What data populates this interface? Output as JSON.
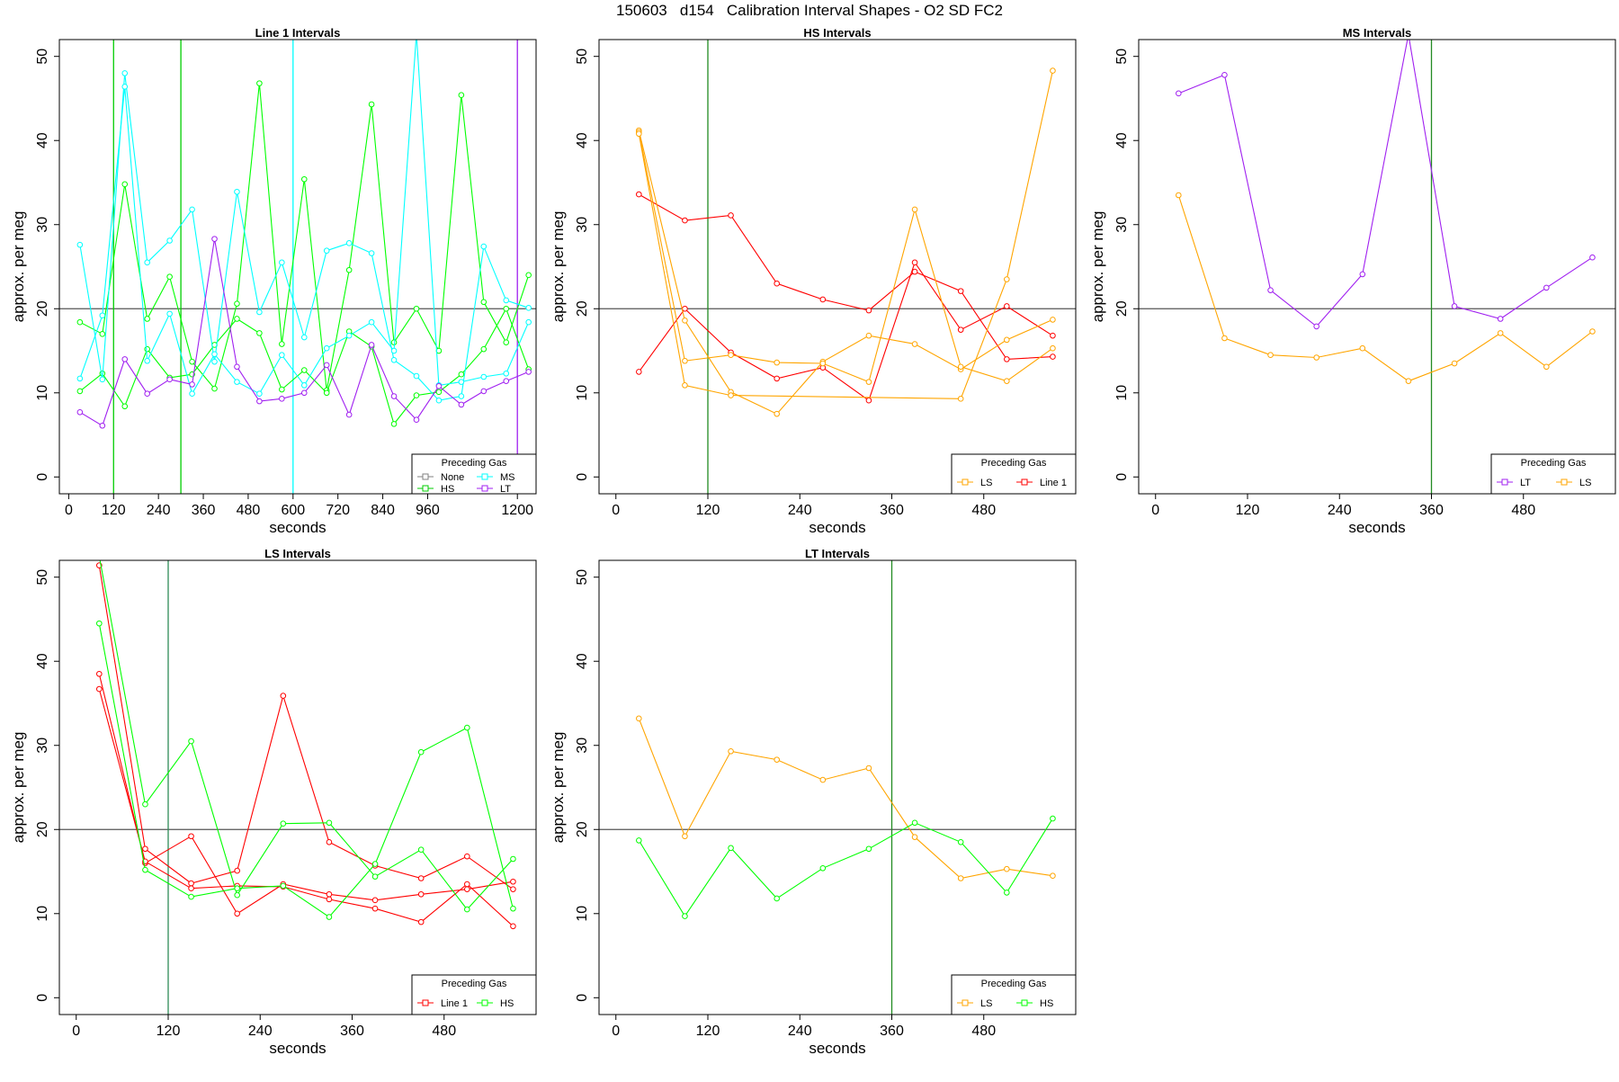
{
  "page_title": "150603   d154   Calibration Interval Shapes - O2 SD FC2",
  "chart_data": [
    {
      "type": "line",
      "title": "Line 1 Intervals",
      "xlabel": "seconds",
      "ylabel": "approx. per meg",
      "xlim": [
        -25,
        1250
      ],
      "ylim": [
        -2,
        52
      ],
      "xticks": [
        0,
        120,
        240,
        360,
        480,
        600,
        720,
        840,
        960,
        1200
      ],
      "yticks": [
        0,
        10,
        20,
        30,
        40,
        50
      ],
      "hline": 20,
      "vlines": [
        {
          "x": 120,
          "color": "#00cd00"
        },
        {
          "x": 300,
          "color": "#00cd00"
        },
        {
          "x": 600,
          "color": "#00ffff"
        },
        {
          "x": 1200,
          "color": "#a020f0"
        }
      ],
      "legend": {
        "title": "Preceding Gas",
        "position": "bottom-right",
        "columns": 2,
        "entries": [
          {
            "label": "None",
            "color": "#808080"
          },
          {
            "label": "MS",
            "color": "#00ffff"
          },
          {
            "label": "HS",
            "color": "#00cd00"
          },
          {
            "label": "LT",
            "color": "#a020f0"
          }
        ]
      },
      "series": [
        {
          "name": "HS",
          "color": "#00ff00",
          "x": [
            30,
            90,
            150,
            210,
            270,
            330,
            390,
            450,
            510,
            570,
            630,
            690,
            750,
            810,
            870,
            930,
            990,
            1050,
            1110,
            1170,
            1230
          ],
          "y": [
            18.4,
            17.0,
            34.8,
            18.8,
            23.8,
            13.7,
            10.5,
            20.6,
            46.8,
            15.8,
            35.4,
            10.3,
            24.6,
            44.3,
            16.0,
            20.0,
            15.0,
            45.4,
            20.8,
            16.0,
            24.0
          ]
        },
        {
          "name": "HS",
          "color": "#00ff00",
          "x": [
            30,
            90,
            150,
            210,
            270,
            330,
            390,
            450,
            510,
            570,
            630,
            690,
            750,
            810,
            870,
            930,
            990,
            1050,
            1110,
            1170,
            1230
          ],
          "y": [
            10.2,
            12.3,
            8.4,
            15.2,
            11.8,
            12.2,
            15.7,
            18.8,
            17.1,
            10.4,
            12.7,
            10.0,
            17.3,
            15.5,
            6.3,
            9.7,
            10.1,
            12.2,
            15.2,
            20.0,
            12.8
          ]
        },
        {
          "name": "MS",
          "color": "#00ffff",
          "x": [
            30,
            90,
            150,
            210,
            270,
            330,
            390,
            450,
            510,
            570,
            630,
            690,
            750,
            810,
            870,
            930,
            990,
            1050,
            1110,
            1170,
            1230
          ],
          "y": [
            27.6,
            11.6,
            48.0,
            25.5,
            28.1,
            31.8,
            13.7,
            33.9,
            19.6,
            25.5,
            16.6,
            26.9,
            27.8,
            26.6,
            13.9,
            12.0,
            9.1,
            9.6,
            27.4,
            21.0,
            20.1
          ]
        },
        {
          "name": "MS",
          "color": "#00ffff",
          "x": [
            30,
            90,
            150,
            210,
            270,
            330,
            390,
            450,
            510,
            570,
            630,
            690,
            750,
            810,
            870,
            930,
            990,
            1050,
            1110,
            1170,
            1230
          ],
          "y": [
            11.7,
            19.2,
            46.4,
            13.8,
            19.4,
            9.9,
            14.6,
            11.3,
            9.9,
            14.5,
            10.9,
            15.3,
            16.8,
            18.4,
            15.0,
            52.7,
            10.9,
            11.3,
            11.9,
            12.3,
            18.4
          ]
        },
        {
          "name": "LT",
          "color": "#a020f0",
          "x": [
            30,
            90,
            150,
            210,
            270,
            330,
            390,
            450,
            510,
            570,
            630,
            690,
            750,
            810,
            870,
            930,
            990,
            1050,
            1110,
            1170,
            1230
          ],
          "y": [
            7.7,
            6.1,
            14.0,
            9.9,
            11.6,
            11.0,
            28.3,
            13.1,
            9.0,
            9.3,
            10.0,
            13.3,
            7.4,
            15.7,
            9.6,
            6.8,
            10.8,
            8.6,
            10.2,
            11.4,
            12.5
          ]
        }
      ]
    },
    {
      "type": "line",
      "title": "HS Intervals",
      "xlabel": "seconds",
      "ylabel": "approx. per meg",
      "xlim": [
        -22,
        600
      ],
      "ylim": [
        -2,
        52
      ],
      "xticks": [
        0,
        120,
        240,
        360,
        480
      ],
      "yticks": [
        0,
        10,
        20,
        30,
        40,
        50
      ],
      "hline": 20,
      "vlines": [
        {
          "x": 120,
          "color": "#228b22"
        }
      ],
      "legend": {
        "title": "Preceding Gas",
        "position": "bottom-right",
        "columns": 2,
        "entries": [
          {
            "label": "LS",
            "color": "#ffa500"
          },
          {
            "label": "Line 1",
            "color": "#ff0000"
          }
        ]
      },
      "series": [
        {
          "name": "Line 1",
          "color": "#ff0000",
          "x": [
            30,
            90,
            150,
            210,
            270,
            330,
            390,
            450,
            510,
            570
          ],
          "y": [
            33.6,
            30.5,
            31.1,
            23.0,
            21.1,
            19.8,
            24.4,
            22.1,
            14.0,
            14.3
          ]
        },
        {
          "name": "Line 1",
          "color": "#ff0000",
          "x": [
            30,
            90,
            150,
            210,
            270,
            330,
            390,
            450,
            510,
            570
          ],
          "y": [
            12.5,
            20.0,
            14.8,
            11.7,
            13.0,
            9.1,
            25.5,
            17.5,
            20.3,
            16.8
          ]
        },
        {
          "name": "LS",
          "color": "#ffa500",
          "x": [
            30,
            90,
            150,
            210,
            270,
            330,
            390,
            450,
            510,
            570
          ],
          "y": [
            41.2,
            18.6,
            10.1,
            7.5,
            13.7,
            16.8,
            15.8,
            12.8,
            16.3,
            18.7
          ]
        },
        {
          "name": "LS",
          "color": "#ffa500",
          "x": [
            30,
            90,
            150,
            210,
            270,
            330,
            390,
            450,
            510,
            570
          ],
          "y": [
            41.0,
            13.8,
            14.5,
            13.6,
            13.5,
            11.3,
            31.8,
            13.1,
            11.4,
            15.3
          ]
        },
        {
          "name": "LS",
          "color": "#ffa500",
          "x": [
            30,
            90,
            150,
            450,
            510,
            570
          ],
          "y": [
            40.8,
            10.9,
            9.7,
            9.3,
            23.5,
            48.3
          ]
        }
      ]
    },
    {
      "type": "line",
      "title": "MS Intervals",
      "xlabel": "seconds",
      "ylabel": "approx. per meg",
      "xlim": [
        -22,
        600
      ],
      "ylim": [
        -2,
        52
      ],
      "xticks": [
        0,
        120,
        240,
        360,
        480
      ],
      "yticks": [
        0,
        10,
        20,
        30,
        40,
        50
      ],
      "hline": 20,
      "vlines": [
        {
          "x": 360,
          "color": "#228b22"
        }
      ],
      "legend": {
        "title": "Preceding Gas",
        "position": "bottom-right",
        "columns": 2,
        "entries": [
          {
            "label": "LT",
            "color": "#a020f0"
          },
          {
            "label": "LS",
            "color": "#ffa500"
          }
        ]
      },
      "series": [
        {
          "name": "LT",
          "color": "#a020f0",
          "x": [
            30,
            90,
            150,
            210,
            270,
            330,
            390,
            450,
            510,
            570
          ],
          "y": [
            45.6,
            47.8,
            22.2,
            17.9,
            24.1,
            52.6,
            20.3,
            18.8,
            22.5,
            26.1
          ]
        },
        {
          "name": "LS",
          "color": "#ffa500",
          "x": [
            30,
            90,
            150,
            210,
            270,
            330,
            390,
            450,
            510,
            570
          ],
          "y": [
            33.5,
            16.5,
            14.5,
            14.2,
            15.3,
            11.4,
            13.5,
            17.1,
            13.1,
            17.3
          ]
        }
      ]
    },
    {
      "type": "line",
      "title": "LS Intervals",
      "xlabel": "seconds",
      "ylabel": "approx. per meg",
      "xlim": [
        -22,
        600
      ],
      "ylim": [
        -2,
        52
      ],
      "xticks": [
        0,
        120,
        240,
        360,
        480
      ],
      "yticks": [
        0,
        10,
        20,
        30,
        40,
        50
      ],
      "hline": 20,
      "vlines": [
        {
          "x": 120,
          "color": "#2e8b57"
        }
      ],
      "legend": {
        "title": "Preceding Gas",
        "position": "bottom-right",
        "columns": 2,
        "entries": [
          {
            "label": "Line 1",
            "color": "#ff0000"
          },
          {
            "label": "HS",
            "color": "#00ff00"
          }
        ]
      },
      "series": [
        {
          "name": "Line 1",
          "color": "#ff0000",
          "x": [
            30,
            90,
            150,
            210,
            270,
            330,
            390,
            450,
            510,
            570
          ],
          "y": [
            51.4,
            17.7,
            13.6,
            15.1,
            35.9,
            18.5,
            15.7,
            14.2,
            16.8,
            12.9
          ]
        },
        {
          "name": "Line 1",
          "color": "#ff0000",
          "x": [
            30,
            90,
            150,
            210,
            270,
            330,
            390,
            450,
            510,
            570
          ],
          "y": [
            38.5,
            16.0,
            19.2,
            10.0,
            13.5,
            12.3,
            11.6,
            12.3,
            12.9,
            13.8
          ]
        },
        {
          "name": "Line 1",
          "color": "#ff0000",
          "x": [
            30,
            90,
            150,
            210,
            270,
            330,
            390,
            450,
            510,
            570
          ],
          "y": [
            36.7,
            16.2,
            13.0,
            13.3,
            13.2,
            11.7,
            10.6,
            9.0,
            13.5,
            8.5
          ]
        },
        {
          "name": "HS",
          "color": "#00ff00",
          "x": [
            30,
            90,
            150,
            210,
            270,
            330,
            390,
            450,
            510,
            570
          ],
          "y": [
            52.5,
            23.0,
            30.5,
            12.2,
            20.7,
            20.8,
            14.4,
            17.6,
            10.5,
            16.5
          ]
        },
        {
          "name": "HS",
          "color": "#00ff00",
          "x": [
            30,
            90,
            150,
            210,
            270,
            330,
            390,
            450,
            510,
            570
          ],
          "y": [
            44.5,
            15.2,
            12.0,
            13.0,
            13.3,
            9.6,
            15.9,
            29.2,
            32.1,
            10.6
          ]
        }
      ]
    },
    {
      "type": "line",
      "title": "LT Intervals",
      "xlabel": "seconds",
      "ylabel": "approx. per meg",
      "xlim": [
        -22,
        600
      ],
      "ylim": [
        -2,
        52
      ],
      "xticks": [
        0,
        120,
        240,
        360,
        480
      ],
      "yticks": [
        0,
        10,
        20,
        30,
        40,
        50
      ],
      "hline": 20,
      "vlines": [
        {
          "x": 360,
          "color": "#228b22"
        }
      ],
      "legend": {
        "title": "Preceding Gas",
        "position": "bottom-right",
        "columns": 2,
        "entries": [
          {
            "label": "LS",
            "color": "#ffa500"
          },
          {
            "label": "HS",
            "color": "#00ff00"
          }
        ]
      },
      "series": [
        {
          "name": "LS",
          "color": "#ffa500",
          "x": [
            30,
            90,
            150,
            210,
            270,
            330,
            390,
            450,
            510,
            570
          ],
          "y": [
            33.2,
            19.2,
            29.3,
            28.3,
            25.9,
            27.3,
            19.1,
            14.2,
            15.3,
            14.5
          ]
        },
        {
          "name": "HS",
          "color": "#00ff00",
          "x": [
            30,
            90,
            150,
            210,
            270,
            330,
            390,
            450,
            510,
            570
          ],
          "y": [
            18.7,
            9.7,
            17.8,
            11.8,
            15.4,
            17.7,
            20.8,
            18.5,
            12.5,
            21.3
          ]
        }
      ]
    }
  ]
}
